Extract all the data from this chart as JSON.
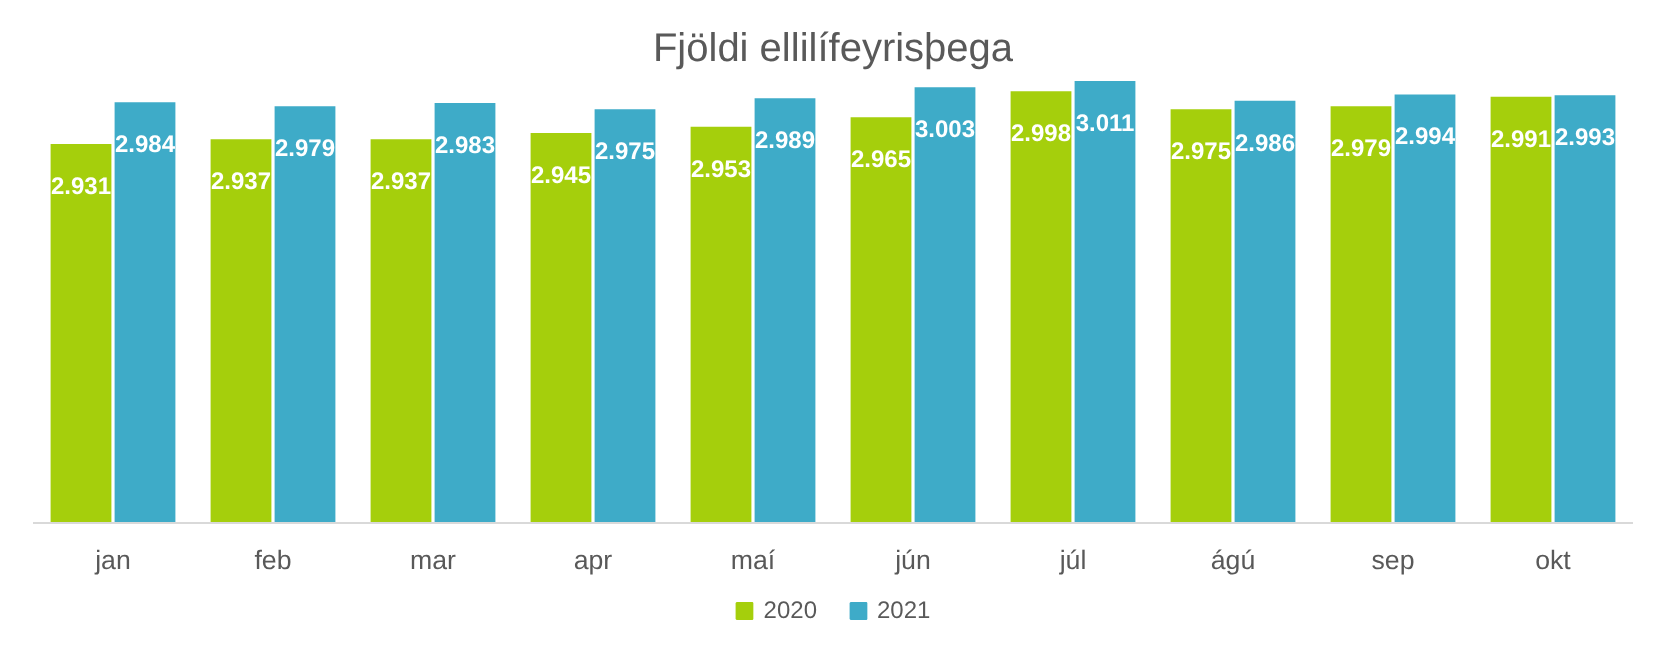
{
  "chart_data": {
    "type": "bar",
    "title": "Fjöldi ellilífeyrisþega",
    "categories": [
      "jan",
      "feb",
      "mar",
      "apr",
      "maí",
      "jún",
      "júl",
      "ágú",
      "sep",
      "okt"
    ],
    "series": [
      {
        "name": "2020",
        "color": "#a5cf0c",
        "values": [
          2931,
          2937,
          2937,
          2945,
          2953,
          2965,
          2998,
          2975,
          2979,
          2991
        ],
        "value_labels": [
          "2.931",
          "2.937",
          "2.937",
          "2.945",
          "2.953",
          "2.965",
          "2.998",
          "2.975",
          "2.979",
          "2.991"
        ]
      },
      {
        "name": "2021",
        "color": "#3eabc8",
        "values": [
          2984,
          2979,
          2983,
          2975,
          2989,
          3003,
          3011,
          2986,
          2994,
          2993
        ],
        "value_labels": [
          "2.984",
          "2.979",
          "2.983",
          "2.975",
          "2.989",
          "3.003",
          "3.011",
          "2.986",
          "2.994",
          "2.993"
        ]
      }
    ],
    "ylim": [
      2450,
      3011
    ],
    "tick_labels": "x",
    "grid": false,
    "legend": "bottom"
  }
}
